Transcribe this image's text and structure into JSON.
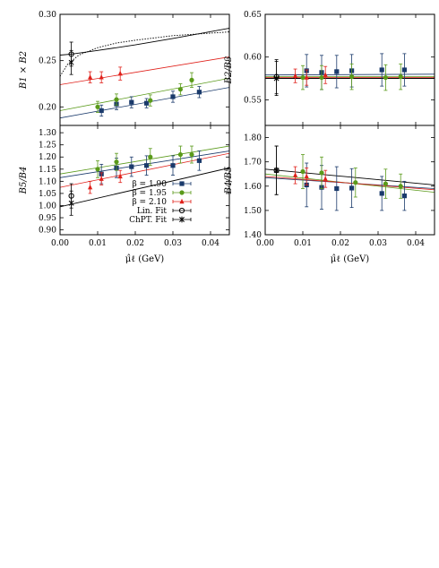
{
  "colors": {
    "b190": "#1a3a6b",
    "b195": "#5a9a1a",
    "b210": "#e0201a",
    "fit": "#000000"
  },
  "legend": [
    {
      "label": "β = 1.90",
      "key": "b190",
      "marker": "square"
    },
    {
      "label": "β = 1.95",
      "key": "b195",
      "marker": "circle"
    },
    {
      "label": "β = 2.10",
      "key": "b210",
      "marker": "triangle"
    },
    {
      "label": "Lin. Fit",
      "key": "fit",
      "marker": "open-circle"
    },
    {
      "label": "ChPT. Fit",
      "key": "fit",
      "marker": "star"
    }
  ],
  "chart_data": [
    {
      "type": "scatter",
      "ylabel": "B1 × B2",
      "xlim": [
        0,
        0.045
      ],
      "ylim": [
        0.18,
        0.3
      ],
      "yticks": [
        "0.20",
        "0.25",
        "0.30"
      ],
      "xticks": [],
      "series": [
        {
          "name": "β = 1.90",
          "key": "b190",
          "marker": "square",
          "x": [
            0.011,
            0.015,
            0.019,
            0.023,
            0.03,
            0.037
          ],
          "y": [
            0.196,
            0.203,
            0.205,
            0.204,
            0.211,
            0.216
          ],
          "err": [
            0.006,
            0.006,
            0.006,
            0.005,
            0.006,
            0.006
          ]
        },
        {
          "name": "β = 1.95",
          "key": "b195",
          "marker": "circle",
          "x": [
            0.01,
            0.015,
            0.024,
            0.032,
            0.035
          ],
          "y": [
            0.2,
            0.208,
            0.207,
            0.219,
            0.229
          ],
          "err": [
            0.006,
            0.006,
            0.006,
            0.006,
            0.008
          ]
        },
        {
          "name": "β = 2.10",
          "key": "b210",
          "marker": "triangle",
          "x": [
            0.008,
            0.011,
            0.016
          ],
          "y": [
            0.232,
            0.232,
            0.236
          ],
          "err": [
            0.006,
            0.006,
            0.007
          ]
        },
        {
          "name": "Lin. Fit",
          "key": "fit",
          "marker": "open-circle",
          "x": [
            0.003
          ],
          "y": [
            0.257
          ],
          "err": [
            0.013
          ]
        },
        {
          "name": "ChPT. Fit",
          "key": "fit",
          "marker": "star",
          "x": [
            0.003
          ],
          "y": [
            0.248
          ],
          "err": [
            0.013
          ]
        }
      ],
      "lines": [
        {
          "key": "b190",
          "dash": false,
          "x": [
            0,
            0.045
          ],
          "y": [
            0.188,
            0.221
          ]
        },
        {
          "key": "b195",
          "dash": false,
          "x": [
            0,
            0.045
          ],
          "y": [
            0.196,
            0.231
          ]
        },
        {
          "key": "b210",
          "dash": false,
          "x": [
            0,
            0.045
          ],
          "y": [
            0.224,
            0.254
          ]
        },
        {
          "key": "fit",
          "dash": false,
          "x": [
            0,
            0.003,
            0.01,
            0.02,
            0.03,
            0.045
          ],
          "y": [
            0.256,
            0.257,
            0.261,
            0.267,
            0.274,
            0.285
          ]
        },
        {
          "key": "fit",
          "dash": true,
          "x": [
            0,
            0.002,
            0.005,
            0.01,
            0.015,
            0.02,
            0.03,
            0.045
          ],
          "y": [
            0.233,
            0.246,
            0.256,
            0.264,
            0.269,
            0.272,
            0.277,
            0.281
          ]
        }
      ]
    },
    {
      "type": "scatter",
      "ylabel": "B2/B3",
      "xlim": [
        0,
        0.045
      ],
      "ylim": [
        0.52,
        0.65
      ],
      "yticks": [
        "0.55",
        "0.60",
        "0.65"
      ],
      "xticks": [],
      "series": [
        {
          "name": "β = 1.90",
          "key": "b190",
          "marker": "square",
          "x": [
            0.011,
            0.015,
            0.019,
            0.023,
            0.031,
            0.037
          ],
          "y": [
            0.584,
            0.582,
            0.583,
            0.584,
            0.585,
            0.585
          ],
          "err": [
            0.019,
            0.02,
            0.019,
            0.019,
            0.019,
            0.019
          ]
        },
        {
          "name": "β = 1.95",
          "key": "b195",
          "marker": "circle",
          "x": [
            0.01,
            0.015,
            0.023,
            0.032,
            0.036
          ],
          "y": [
            0.576,
            0.576,
            0.577,
            0.576,
            0.577
          ],
          "err": [
            0.014,
            0.014,
            0.015,
            0.015,
            0.015
          ]
        },
        {
          "name": "β = 2.10",
          "key": "b210",
          "marker": "triangle",
          "x": [
            0.008,
            0.011,
            0.016
          ],
          "y": [
            0.578,
            0.576,
            0.579
          ],
          "err": [
            0.008,
            0.009,
            0.01
          ]
        },
        {
          "name": "Lin. Fit",
          "key": "fit",
          "marker": "open-circle",
          "x": [
            0.003
          ],
          "y": [
            0.577
          ],
          "err": [
            0.02
          ]
        },
        {
          "name": "ChPT. Fit",
          "key": "fit",
          "marker": "star",
          "x": [
            0.003
          ],
          "y": [
            0.575
          ],
          "err": [
            0.02
          ]
        }
      ],
      "lines": [
        {
          "key": "b190",
          "dash": false,
          "x": [
            0,
            0.045
          ],
          "y": [
            0.579,
            0.58
          ]
        },
        {
          "key": "b195",
          "dash": false,
          "x": [
            0,
            0.045
          ],
          "y": [
            0.577,
            0.577
          ]
        },
        {
          "key": "b210",
          "dash": false,
          "x": [
            0,
            0.045
          ],
          "y": [
            0.576,
            0.576
          ]
        },
        {
          "key": "fit",
          "dash": false,
          "x": [
            0,
            0.045
          ],
          "y": [
            0.575,
            0.575
          ]
        }
      ]
    },
    {
      "type": "scatter",
      "ylabel": "B5/B4",
      "xlabel": "μ̂ℓ (GeV)",
      "xlim": [
        0,
        0.045
      ],
      "ylim": [
        0.88,
        1.33
      ],
      "yticks": [
        "0.90",
        "0.95",
        "1.00",
        "1.05",
        "1.10",
        "1.15",
        "1.20",
        "1.25",
        "1.30"
      ],
      "xticks": [
        "0.00",
        "0.01",
        "0.02",
        "0.03",
        "0.04"
      ],
      "series": [
        {
          "name": "β = 1.90",
          "key": "b190",
          "marker": "square",
          "x": [
            0.011,
            0.015,
            0.019,
            0.023,
            0.03,
            0.037
          ],
          "y": [
            1.13,
            1.155,
            1.16,
            1.165,
            1.165,
            1.185
          ],
          "err": [
            0.04,
            0.04,
            0.04,
            0.04,
            0.04,
            0.04
          ]
        },
        {
          "name": "β = 1.95",
          "key": "b195",
          "marker": "circle",
          "x": [
            0.01,
            0.015,
            0.024,
            0.032,
            0.035
          ],
          "y": [
            1.15,
            1.18,
            1.2,
            1.21,
            1.21
          ],
          "err": [
            0.035,
            0.035,
            0.035,
            0.035,
            0.035
          ]
        },
        {
          "name": "β = 2.10",
          "key": "b210",
          "marker": "triangle",
          "x": [
            0.008,
            0.011,
            0.016
          ],
          "y": [
            1.075,
            1.11,
            1.12
          ],
          "err": [
            0.025,
            0.025,
            0.025
          ]
        },
        {
          "name": "Lin. Fit",
          "key": "fit",
          "marker": "open-circle",
          "x": [
            0.003
          ],
          "y": [
            1.04
          ],
          "err": [
            0.05
          ]
        },
        {
          "name": "ChPT. Fit",
          "key": "fit",
          "marker": "star",
          "x": [
            0.003
          ],
          "y": [
            1.01
          ],
          "err": [
            0.05
          ]
        }
      ],
      "lines": [
        {
          "key": "b190",
          "dash": false,
          "x": [
            0,
            0.045
          ],
          "y": [
            1.115,
            1.225
          ]
        },
        {
          "key": "b195",
          "dash": false,
          "x": [
            0,
            0.045
          ],
          "y": [
            1.13,
            1.245
          ]
        },
        {
          "key": "b210",
          "dash": false,
          "x": [
            0,
            0.045
          ],
          "y": [
            1.075,
            1.215
          ]
        },
        {
          "key": "fit",
          "dash": false,
          "x": [
            0,
            0.045
          ],
          "y": [
            0.995,
            1.155
          ]
        }
      ]
    },
    {
      "type": "scatter",
      "ylabel": "B4/B5",
      "xlabel": "μ̂ℓ (GeV)",
      "xlim": [
        0,
        0.045
      ],
      "ylim": [
        1.4,
        1.85
      ],
      "yticks": [
        "1.40",
        "1.50",
        "1.60",
        "1.70",
        "1.80"
      ],
      "xticks": [
        "0.00",
        "0.01",
        "0.02",
        "0.03",
        "0.04"
      ],
      "series": [
        {
          "name": "β = 1.90",
          "key": "b190",
          "marker": "square",
          "x": [
            0.011,
            0.015,
            0.019,
            0.023,
            0.031,
            0.037
          ],
          "y": [
            1.605,
            1.595,
            1.59,
            1.592,
            1.57,
            1.56
          ],
          "err": [
            0.09,
            0.09,
            0.09,
            0.08,
            0.07,
            0.06
          ]
        },
        {
          "name": "β = 1.95",
          "key": "b195",
          "marker": "circle",
          "x": [
            0.01,
            0.015,
            0.024,
            0.032,
            0.036
          ],
          "y": [
            1.66,
            1.655,
            1.615,
            1.61,
            1.6
          ],
          "err": [
            0.07,
            0.065,
            0.06,
            0.06,
            0.05
          ]
        },
        {
          "name": "β = 2.10",
          "key": "b210",
          "marker": "triangle",
          "x": [
            0.008,
            0.011,
            0.016
          ],
          "y": [
            1.645,
            1.64,
            1.63
          ],
          "err": [
            0.035,
            0.035,
            0.035
          ]
        },
        {
          "name": "Lin. Fit",
          "key": "fit",
          "marker": "open-circle",
          "x": [
            0.003
          ],
          "y": [
            1.665
          ],
          "err": [
            0.1
          ]
        },
        {
          "name": "ChPT. Fit",
          "key": "fit",
          "marker": "star",
          "x": [
            0.003
          ],
          "y": [
            1.665
          ],
          "err": [
            0.1
          ]
        }
      ],
      "lines": [
        {
          "key": "b190",
          "dash": false,
          "x": [
            0,
            0.045
          ],
          "y": [
            1.635,
            1.59
          ]
        },
        {
          "key": "b195",
          "dash": false,
          "x": [
            0,
            0.045
          ],
          "y": [
            1.65,
            1.575
          ]
        },
        {
          "key": "b210",
          "dash": false,
          "x": [
            0,
            0.045
          ],
          "y": [
            1.64,
            1.585
          ]
        },
        {
          "key": "fit",
          "dash": false,
          "x": [
            0,
            0.045
          ],
          "y": [
            1.67,
            1.605
          ]
        }
      ]
    }
  ]
}
